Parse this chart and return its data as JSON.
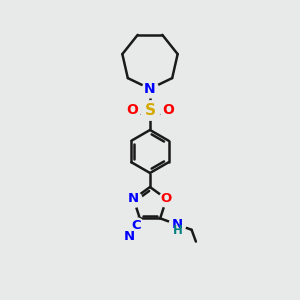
{
  "bg_color": "#e8eaea",
  "line_color": "#1a1a1a",
  "nitrogen_color": "#0000ff",
  "oxygen_color": "#ff0000",
  "sulfur_color": "#d4aa00",
  "nh_color": "#008080",
  "line_width": 1.8,
  "figsize": [
    3.0,
    3.0
  ],
  "dpi": 100,
  "xlim": [
    0,
    10
  ],
  "ylim": [
    0,
    10
  ]
}
